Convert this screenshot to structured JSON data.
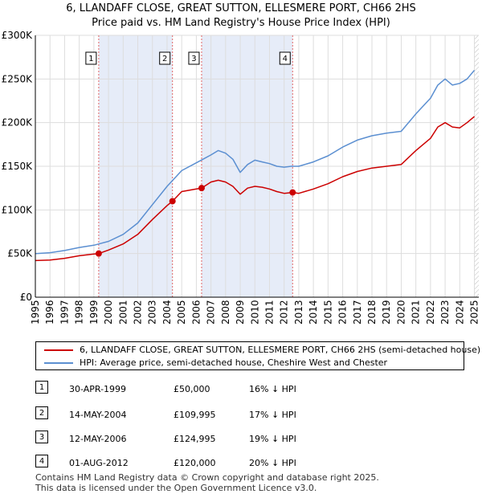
{
  "title_line1": "6, LLANDAFF CLOSE, GREAT SUTTON, ELLESMERE PORT, CH66 2HS",
  "title_line2": "Price paid vs. HM Land Registry's House Price Index (HPI)",
  "chart_data": {
    "type": "line",
    "title": "6, LLANDAFF CLOSE, GREAT SUTTON, ELLESMERE PORT, CH66 2HS — Price paid vs. HM Land Registry's House Price Index (HPI)",
    "xlim": [
      1995,
      2025.3
    ],
    "ylim": [
      0,
      300000
    ],
    "x_ticks": [
      1995,
      1996,
      1997,
      1998,
      1999,
      2000,
      2001,
      2002,
      2003,
      2004,
      2005,
      2006,
      2007,
      2008,
      2009,
      2010,
      2011,
      2012,
      2013,
      2014,
      2015,
      2016,
      2017,
      2018,
      2019,
      2020,
      2021,
      2022,
      2023,
      2024,
      2025
    ],
    "y_ticks": [
      {
        "value": 0,
        "label": "£0"
      },
      {
        "value": 50000,
        "label": "£50K"
      },
      {
        "value": 100000,
        "label": "£100K"
      },
      {
        "value": 150000,
        "label": "£150K"
      },
      {
        "value": 200000,
        "label": "£200K"
      },
      {
        "value": 250000,
        "label": "£250K"
      },
      {
        "value": 300000,
        "label": "£300K"
      }
    ],
    "grid": true,
    "legend_position": "below",
    "series": [
      {
        "name": "6, LLANDAFF CLOSE, GREAT SUTTON, ELLESMERE PORT, CH66 2HS (semi-detached house)",
        "color": "#cc0000",
        "points": [
          [
            1995.0,
            42000
          ],
          [
            1996.0,
            42500
          ],
          [
            1997.0,
            44500
          ],
          [
            1998.0,
            47500
          ],
          [
            1999.0,
            49500
          ],
          [
            1999.33,
            50000
          ],
          [
            2000.0,
            54000
          ],
          [
            2001.0,
            61000
          ],
          [
            2002.0,
            72000
          ],
          [
            2003.0,
            89000
          ],
          [
            2004.0,
            105000
          ],
          [
            2004.37,
            109995
          ],
          [
            2005.0,
            121000
          ],
          [
            2006.0,
            124000
          ],
          [
            2006.36,
            124995
          ],
          [
            2007.0,
            132000
          ],
          [
            2007.5,
            134000
          ],
          [
            2008.0,
            132000
          ],
          [
            2008.5,
            127000
          ],
          [
            2009.0,
            118000
          ],
          [
            2009.5,
            125000
          ],
          [
            2010.0,
            127000
          ],
          [
            2010.5,
            126000
          ],
          [
            2011.0,
            124000
          ],
          [
            2011.5,
            121000
          ],
          [
            2012.0,
            119000
          ],
          [
            2012.58,
            120000
          ],
          [
            2013.0,
            119000
          ],
          [
            2014.0,
            124000
          ],
          [
            2015.0,
            130000
          ],
          [
            2016.0,
            138000
          ],
          [
            2017.0,
            144000
          ],
          [
            2018.0,
            148000
          ],
          [
            2019.0,
            150000
          ],
          [
            2020.0,
            152000
          ],
          [
            2021.0,
            168000
          ],
          [
            2022.0,
            182000
          ],
          [
            2022.5,
            195000
          ],
          [
            2023.0,
            200000
          ],
          [
            2023.5,
            195000
          ],
          [
            2024.0,
            194000
          ],
          [
            2024.5,
            200000
          ],
          [
            2025.0,
            207000
          ]
        ]
      },
      {
        "name": "HPI: Average price, semi-detached house, Cheshire West and Chester",
        "color": "#5b8fd1",
        "points": [
          [
            1995.0,
            50000
          ],
          [
            1996.0,
            51000
          ],
          [
            1997.0,
            53500
          ],
          [
            1998.0,
            57000
          ],
          [
            1999.0,
            59500
          ],
          [
            2000.0,
            64000
          ],
          [
            2001.0,
            72000
          ],
          [
            2002.0,
            85000
          ],
          [
            2003.0,
            106000
          ],
          [
            2004.0,
            127000
          ],
          [
            2005.0,
            145000
          ],
          [
            2006.0,
            154000
          ],
          [
            2007.0,
            163000
          ],
          [
            2007.5,
            168000
          ],
          [
            2008.0,
            165000
          ],
          [
            2008.5,
            158000
          ],
          [
            2009.0,
            143000
          ],
          [
            2009.5,
            152000
          ],
          [
            2010.0,
            157000
          ],
          [
            2010.5,
            155000
          ],
          [
            2011.0,
            153000
          ],
          [
            2011.5,
            150000
          ],
          [
            2012.0,
            149000
          ],
          [
            2012.5,
            150000
          ],
          [
            2013.0,
            150000
          ],
          [
            2014.0,
            155000
          ],
          [
            2015.0,
            162000
          ],
          [
            2016.0,
            172000
          ],
          [
            2017.0,
            180000
          ],
          [
            2018.0,
            185000
          ],
          [
            2019.0,
            188000
          ],
          [
            2020.0,
            190000
          ],
          [
            2021.0,
            210000
          ],
          [
            2022.0,
            228000
          ],
          [
            2022.5,
            243000
          ],
          [
            2023.0,
            250000
          ],
          [
            2023.5,
            243000
          ],
          [
            2024.0,
            245000
          ],
          [
            2024.5,
            250000
          ],
          [
            2025.0,
            260000
          ]
        ]
      }
    ],
    "transactions": [
      {
        "label": "1",
        "x": 1999.33,
        "price": 50000
      },
      {
        "label": "2",
        "x": 2004.37,
        "price": 109995
      },
      {
        "label": "3",
        "x": 2006.36,
        "price": 124995
      },
      {
        "label": "4",
        "x": 2012.58,
        "price": 120000
      }
    ],
    "shaded_spans": [
      [
        1999.33,
        2004.37
      ],
      [
        2006.36,
        2012.58
      ]
    ],
    "hatch_from": 2025.0
  },
  "legend": {
    "property_label": "6, LLANDAFF CLOSE, GREAT SUTTON, ELLESMERE PORT, CH66 2HS (semi-detached house)",
    "hpi_label": "HPI: Average price, semi-detached house, Cheshire West and Chester",
    "property_color": "#cc0000",
    "hpi_color": "#5b8fd1"
  },
  "transactions_table": [
    {
      "num": "1",
      "date": "30-APR-1999",
      "price": "£50,000",
      "hpi": "16% ↓ HPI"
    },
    {
      "num": "2",
      "date": "14-MAY-2004",
      "price": "£109,995",
      "hpi": "17% ↓ HPI"
    },
    {
      "num": "3",
      "date": "12-MAY-2006",
      "price": "£124,995",
      "hpi": "19% ↓ HPI"
    },
    {
      "num": "4",
      "date": "01-AUG-2012",
      "price": "£120,000",
      "hpi": "20% ↓ HPI"
    }
  ],
  "footer_line1": "Contains HM Land Registry data © Crown copyright and database right 2025.",
  "footer_line2": "This data is licensed under the Open Government Licence v3.0."
}
